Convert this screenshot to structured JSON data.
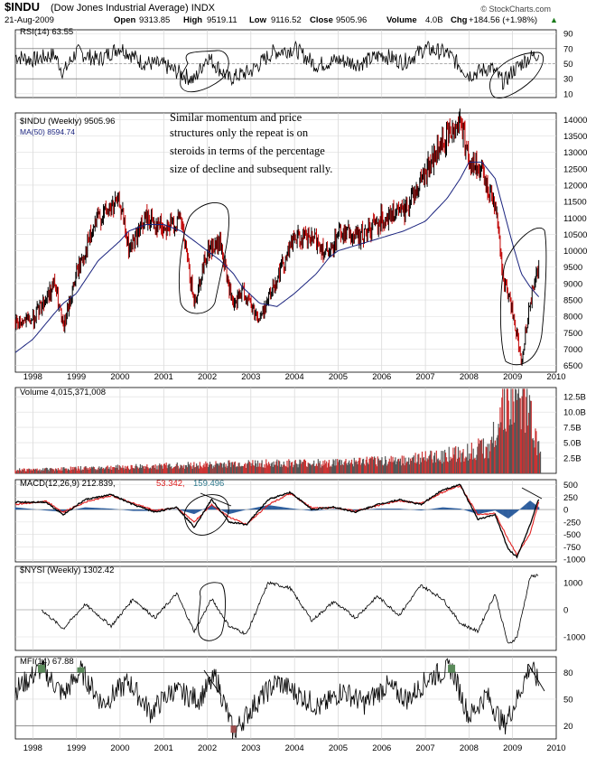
{
  "header": {
    "symbol": "$INDU",
    "name": "(Dow Jones Industrial Average) INDX",
    "date": "21-Aug-2009",
    "open_label": "Open",
    "open": "9313.85",
    "high_label": "High",
    "high": "9519.11",
    "low_label": "Low",
    "low": "9116.52",
    "close_label": "Close",
    "close": "9505.96",
    "volume_label": "Volume",
    "volume": "4.0B",
    "chg_label": "Chg",
    "chg": "+184.56 (+1.98%)",
    "chg_arrow": "▲",
    "brand": "© StockCharts.com"
  },
  "colors": {
    "price": "#000000",
    "ma": "#1a237e",
    "volume": "#cc3333",
    "macd_hist": "#2f5f9e",
    "signal": "#e02020",
    "mfi_fill": "#5a8a5a",
    "nysi": "#000000"
  },
  "annotation": {
    "lines": [
      "Similar momentum and price",
      "structures only the repeat is on",
      "steroids in terms of the percentage",
      "size of decline and subsequent rally."
    ]
  },
  "panels": {
    "rsi": {
      "label": "RSI(14) 63.55",
      "ticks": [
        "90",
        "70",
        "50",
        "30",
        "10"
      ]
    },
    "price": {
      "label": "$INDU (Weekly) 9505.96",
      "ma_label": "MA(50) 8594.74",
      "ticks": [
        "14000",
        "13500",
        "13000",
        "12500",
        "12000",
        "11500",
        "11000",
        "10500",
        "10000",
        "9500",
        "9000",
        "8500",
        "8000",
        "7500",
        "7000",
        "6500"
      ]
    },
    "volume": {
      "label": "Volume 4,015,371,008",
      "ticks": [
        "12.5B",
        "10.0B",
        "7.5B",
        "5.0B",
        "2.5B"
      ]
    },
    "macd": {
      "label_a": "MACD(12,26,9) 212.839,",
      "label_b": "53.342,",
      "label_c": "159.496",
      "ticks": [
        "500",
        "250",
        "0",
        "-250",
        "-500",
        "-750",
        "-1000"
      ]
    },
    "nysi": {
      "label": "$NYSI (Weekly) 1302.42",
      "ticks": [
        "1000",
        "0",
        "-1000"
      ]
    },
    "mfi": {
      "label": "MFI(14) 67.88",
      "ticks": [
        "80",
        "50",
        "20"
      ]
    }
  },
  "x_axis": [
    "1998",
    "1999",
    "2000",
    "2001",
    "2002",
    "2003",
    "2004",
    "2005",
    "2006",
    "2007",
    "2008",
    "2009",
    "2010"
  ],
  "chart_data": [
    {
      "type": "line",
      "title": "$INDU (Weekly) 9505.96",
      "x": [
        1997.6,
        1998.0,
        1998.5,
        1998.7,
        1999.0,
        1999.5,
        2000.0,
        2000.2,
        2000.6,
        2001.0,
        2001.4,
        2001.7,
        2002.0,
        2002.3,
        2002.6,
        2002.8,
        2003.2,
        2003.6,
        2004.0,
        2004.5,
        2004.8,
        2005.0,
        2005.5,
        2006.0,
        2006.5,
        2007.0,
        2007.5,
        2007.8,
        2008.0,
        2008.3,
        2008.6,
        2008.8,
        2009.0,
        2009.2,
        2009.4,
        2009.6
      ],
      "series": [
        {
          "name": "$INDU",
          "values": [
            7800,
            7900,
            9000,
            7600,
            9300,
            11000,
            11500,
            10000,
            11000,
            10700,
            10900,
            8400,
            10000,
            10200,
            8200,
            8800,
            7900,
            9200,
            10400,
            10300,
            9800,
            10600,
            10400,
            11000,
            11200,
            12400,
            13500,
            14000,
            12800,
            12300,
            11500,
            9000,
            8200,
            6600,
            8500,
            9506
          ]
        },
        {
          "name": "MA(50)",
          "values": [
            6900,
            7300,
            8100,
            8400,
            8700,
            9700,
            10300,
            10600,
            10800,
            10800,
            10600,
            10300,
            10000,
            9700,
            9300,
            8900,
            8400,
            8300,
            8700,
            9300,
            9800,
            10000,
            10200,
            10400,
            10600,
            10900,
            11600,
            12200,
            12700,
            12700,
            12200,
            11200,
            10200,
            9300,
            8900,
            8595
          ]
        }
      ],
      "ylim": [
        6300,
        14200
      ]
    },
    {
      "type": "line",
      "title": "RSI(14) 63.55",
      "x": [
        1997.6,
        1998.0,
        1998.5,
        1998.7,
        1999.0,
        1999.5,
        2000.0,
        2000.5,
        2001.0,
        2001.7,
        2002.0,
        2002.5,
        2003.0,
        2003.5,
        2004.0,
        2004.5,
        2005.0,
        2005.5,
        2006.0,
        2006.5,
        2007.0,
        2007.5,
        2008.0,
        2008.5,
        2008.8,
        2009.0,
        2009.3,
        2009.6
      ],
      "values": [
        60,
        55,
        62,
        38,
        66,
        55,
        72,
        52,
        48,
        28,
        60,
        30,
        40,
        65,
        70,
        48,
        55,
        50,
        62,
        52,
        70,
        64,
        35,
        45,
        25,
        40,
        55,
        64
      ],
      "ylim": [
        5,
        95
      ]
    },
    {
      "type": "bar",
      "title": "Volume 4,015,371,008",
      "x": [
        1998,
        1999,
        2000,
        2001,
        2002,
        2003,
        2004,
        2005,
        2006,
        2007,
        2008,
        2008.5,
        2008.8,
        2009.0,
        2009.3,
        2009.6
      ],
      "values": [
        0.6,
        0.8,
        1.0,
        1.2,
        1.4,
        1.6,
        1.6,
        1.7,
        2.0,
        2.5,
        3.5,
        4.5,
        11.5,
        10.5,
        12.0,
        4.0
      ],
      "ylabel": "B"
    },
    {
      "type": "line",
      "title": "MACD(12,26,9) 212.839, 53.342, 159.496",
      "x": [
        1997.6,
        1998.3,
        1998.7,
        1999.2,
        1999.8,
        2000.3,
        2000.8,
        2001.3,
        2001.7,
        2002.1,
        2002.5,
        2002.9,
        2003.4,
        2003.9,
        2004.4,
        2004.9,
        2005.4,
        2005.9,
        2006.4,
        2006.9,
        2007.4,
        2007.8,
        2008.2,
        2008.6,
        2008.9,
        2009.1,
        2009.4,
        2009.6
      ],
      "series": [
        {
          "name": "MACD",
          "values": [
            150,
            150,
            -100,
            200,
            300,
            100,
            -50,
            50,
            -350,
            200,
            -250,
            -300,
            200,
            350,
            0,
            50,
            -50,
            100,
            200,
            100,
            400,
            500,
            -200,
            -100,
            -800,
            -950,
            -300,
            212.8
          ]
        },
        {
          "name": "Signal",
          "values": [
            100,
            170,
            -50,
            150,
            280,
            130,
            -20,
            40,
            -250,
            100,
            -150,
            -300,
            100,
            320,
            30,
            40,
            -30,
            80,
            180,
            120,
            350,
            480,
            -100,
            -80,
            -600,
            -900,
            -500,
            159.5
          ]
        }
      ],
      "ylim": [
        -1050,
        600
      ]
    },
    {
      "type": "line",
      "title": "$NYSI (Weekly) 1302.42",
      "x": [
        1998.2,
        1998.7,
        1999.2,
        1999.8,
        2000.3,
        2000.8,
        2001.3,
        2001.7,
        2002.1,
        2002.5,
        2002.9,
        2003.4,
        2003.9,
        2004.4,
        2004.9,
        2005.4,
        2005.9,
        2006.4,
        2006.9,
        2007.4,
        2007.8,
        2008.2,
        2008.6,
        2008.9,
        2009.1,
        2009.4,
        2009.6
      ],
      "values": [
        0,
        -700,
        200,
        -600,
        400,
        -300,
        600,
        -800,
        400,
        -600,
        -900,
        1000,
        800,
        -400,
        300,
        -300,
        500,
        -200,
        900,
        400,
        -500,
        -800,
        600,
        -1300,
        -1000,
        1200,
        1302.42
      ],
      "ylim": [
        -1500,
        1600
      ]
    },
    {
      "type": "line",
      "title": "MFI(14) 67.88",
      "x": [
        1997.6,
        1998.2,
        1998.7,
        1999.1,
        1999.6,
        2000.2,
        2000.7,
        2001.2,
        2001.8,
        2002.2,
        2002.6,
        2003.1,
        2003.6,
        2004.1,
        2004.6,
        2005.1,
        2005.6,
        2006.1,
        2006.6,
        2007.1,
        2007.6,
        2008.0,
        2008.4,
        2008.8,
        2009.1,
        2009.4,
        2009.6
      ],
      "values": [
        60,
        85,
        55,
        82,
        45,
        70,
        35,
        60,
        50,
        75,
        12,
        45,
        70,
        55,
        40,
        60,
        45,
        65,
        50,
        75,
        85,
        30,
        55,
        20,
        50,
        88,
        67.88
      ],
      "ylim": [
        5,
        98
      ]
    }
  ]
}
